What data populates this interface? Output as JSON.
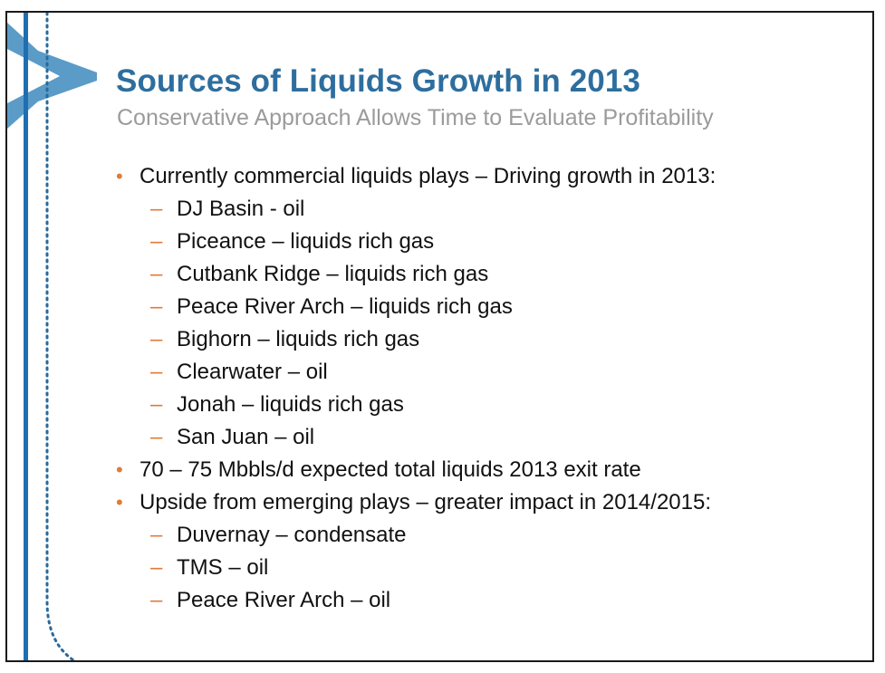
{
  "slide": {
    "title": "Sources of Liquids Growth in 2013",
    "subtitle": "Conservative Approach Allows Time to Evaluate Profitability",
    "bullets": [
      {
        "text": "Currently commercial liquids plays – Driving growth in 2013:",
        "subitems": [
          "DJ Basin - oil",
          "Piceance – liquids rich gas",
          "Cutbank Ridge – liquids rich gas",
          "Peace River Arch – liquids rich gas",
          "Bighorn – liquids rich gas",
          "Clearwater – oil",
          "Jonah – liquids rich gas",
          "San Juan – oil"
        ]
      },
      {
        "text": "70 – 75 Mbbls/d expected total liquids 2013 exit rate",
        "subitems": []
      },
      {
        "text": "Upside from emerging plays – greater impact in 2014/2015:",
        "subitems": [
          "Duvernay – condensate",
          "TMS – oil",
          "Peace River Arch – oil"
        ]
      }
    ]
  },
  "colors": {
    "title": "#2e6e9e",
    "subtitle": "#9b9b9b",
    "bullet_marker": "#e07b39",
    "chevron": "#5b9bc8",
    "vertical_bar": "#1f6fb0",
    "dotted_line": "#2a6a9a"
  },
  "markers": {
    "level1": "•",
    "level2": "–"
  }
}
